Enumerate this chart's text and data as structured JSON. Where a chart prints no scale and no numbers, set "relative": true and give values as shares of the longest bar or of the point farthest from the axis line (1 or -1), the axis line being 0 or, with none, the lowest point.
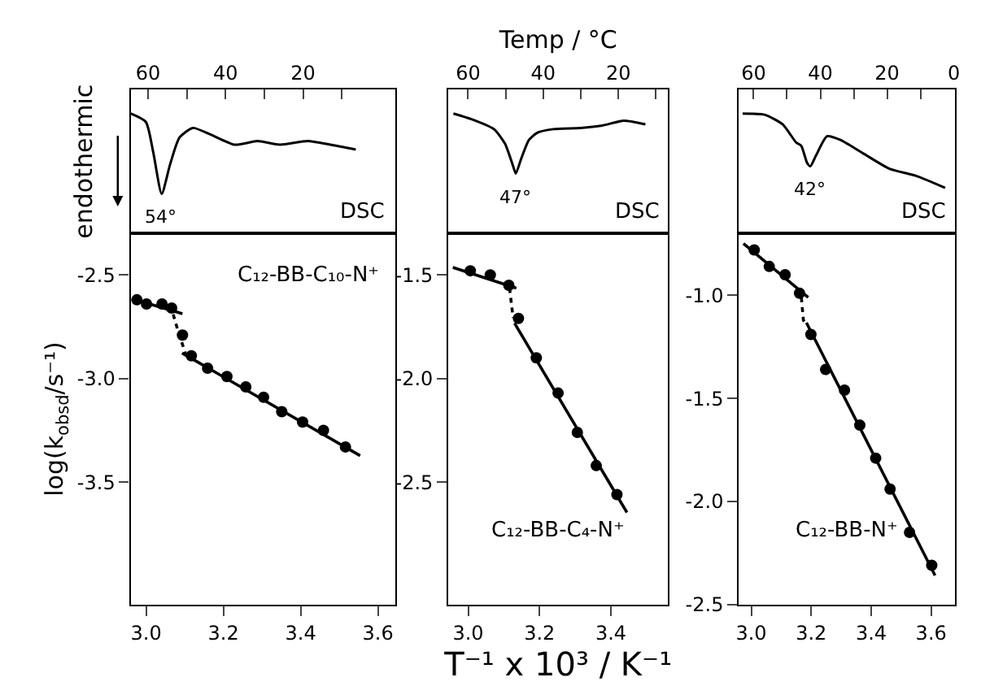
{
  "chart_data": [
    {
      "type": "line",
      "relative": true,
      "ylabel": "endothermic",
      "tick_labels": "x",
      "xlim": [
        64.5,
        -3.8
      ],
      "xticks": [
        60,
        {
          "value": 50,
          "label": null
        },
        40,
        {
          "value": 30,
          "label": null
        },
        20,
        {
          "value": 10,
          "label": null
        }
      ],
      "series": [
        {
          "color": "#000000",
          "x": [
            64.5,
            60.6,
            58.7,
            56.5,
            54.3,
            51.9,
            48.5,
            44.2,
            37.6,
            31.8,
            26.0,
            18.8,
            13.0,
            6.4
          ],
          "values": [
            1.0,
            0.93,
            0.68,
            0.33,
            0.58,
            0.8,
            0.88,
            0.83,
            0.74,
            0.77,
            0.74,
            0.77,
            0.74,
            0.7
          ]
        }
      ],
      "annotations": [
        {
          "text": "54°",
          "x": 56.5,
          "y": 0.33
        },
        "DSC"
      ]
    },
    {
      "type": "line",
      "relative": true,
      "xlabel": "Temp / °C",
      "tick_labels": "x",
      "xlim": [
        65.2,
        6.8
      ],
      "xticks": [
        60,
        {
          "value": 50,
          "label": null
        },
        40,
        {
          "value": 30,
          "label": null
        },
        20,
        {
          "value": 10,
          "label": null
        }
      ],
      "series": [
        {
          "color": "#000000",
          "x": [
            63.9,
            58.8,
            53.1,
            50.2,
            48.1,
            47.3,
            45.9,
            43.8,
            41.6,
            37.3,
            30.1,
            24.3,
            18.6,
            12.8
          ],
          "values": [
            1.0,
            0.95,
            0.87,
            0.75,
            0.57,
            0.5,
            0.62,
            0.78,
            0.84,
            0.87,
            0.88,
            0.9,
            0.94,
            0.91
          ]
        }
      ],
      "annotations": [
        {
          "text": "47°",
          "x": 47.3,
          "y": 0.5
        },
        "DSC"
      ]
    },
    {
      "type": "line",
      "relative": true,
      "tick_labels": "x",
      "xlim": [
        64.4,
        -0.4
      ],
      "xticks": [
        60,
        {
          "value": 50,
          "label": null
        },
        40,
        {
          "value": 30,
          "label": null
        },
        20,
        {
          "value": 10,
          "label": null
        },
        0
      ],
      "series": [
        {
          "color": "#000000",
          "x": [
            63.3,
            56.7,
            51.3,
            47.3,
            45.7,
            44.0,
            43.0,
            41.3,
            38.0,
            34.0,
            27.3,
            19.3,
            11.3,
            2.6
          ],
          "values": [
            1.0,
            0.99,
            0.91,
            0.76,
            0.73,
            0.59,
            0.56,
            0.65,
            0.81,
            0.78,
            0.67,
            0.54,
            0.48,
            0.38
          ]
        }
      ],
      "annotations": [
        {
          "text": "42°",
          "x": 43.0,
          "y": 0.56
        },
        "DSC"
      ]
    },
    {
      "type": "scatter",
      "ylabel": "log(k$_{obsd}$/s⁻¹)",
      "xlim": [
        2.96,
        3.645
      ],
      "xticks": [
        {
          "value": 3.0,
          "label": "3.0"
        },
        3.2,
        3.4,
        3.6
      ],
      "ylim": [
        -4.09,
        -2.3
      ],
      "yticks": [
        -2.5,
        {
          "value": -3.0,
          "label": "-3.0"
        },
        -3.5
      ],
      "series": [
        {
          "type": "scatter",
          "marker": "circle",
          "color": "#000000",
          "x": [
            2.976,
            3.001,
            3.041,
            3.066,
            3.094,
            3.117,
            3.159,
            3.209,
            3.258,
            3.304,
            3.351,
            3.405,
            3.459,
            3.516
          ],
          "values": [
            -2.62,
            -2.64,
            -2.64,
            -2.66,
            -2.79,
            -2.89,
            -2.95,
            -2.99,
            -3.04,
            -3.09,
            -3.16,
            -3.21,
            -3.25,
            -3.33
          ]
        },
        {
          "type": "line",
          "color": "#000000",
          "line_style": "solid",
          "x": [
            2.963,
            3.094
          ],
          "values": [
            -2.615,
            -2.687
          ]
        },
        {
          "type": "line",
          "color": "#000000",
          "line_style": "dotted",
          "x": [
            3.07,
            3.084,
            3.103
          ],
          "values": [
            -2.69,
            -2.78,
            -2.885
          ]
        },
        {
          "type": "line",
          "color": "#000000",
          "line_style": "solid",
          "x": [
            3.093,
            3.554
          ],
          "values": [
            -2.877,
            -3.372
          ]
        }
      ],
      "annotations": [
        "C₁₂-BB-C₁₀-N⁺"
      ]
    },
    {
      "type": "scatter",
      "xlabel": "T⁻¹ x 10³ / K⁻¹",
      "xlim": [
        2.945,
        3.56
      ],
      "xticks": [
        {
          "value": 3.0,
          "label": "3.0"
        },
        3.2,
        3.4
      ],
      "ylim": [
        -3.09,
        -1.3
      ],
      "yticks": [
        -1.5,
        {
          "value": -2.0,
          "label": "-2.0"
        },
        -2.5
      ],
      "series": [
        {
          "type": "scatter",
          "marker": "circle",
          "color": "#000000",
          "x": [
            3.006,
            3.062,
            3.114,
            3.141,
            3.191,
            3.252,
            3.306,
            3.359,
            3.417
          ],
          "values": [
            -1.48,
            -1.5,
            -1.55,
            -1.71,
            -1.9,
            -2.07,
            -2.26,
            -2.42,
            -2.56
          ]
        },
        {
          "type": "line",
          "color": "#000000",
          "line_style": "solid",
          "x": [
            2.957,
            3.135
          ],
          "values": [
            -1.464,
            -1.564
          ]
        },
        {
          "type": "line",
          "color": "#000000",
          "line_style": "dotted",
          "x": [
            3.116,
            3.126
          ],
          "values": [
            -1.564,
            -1.707
          ]
        },
        {
          "type": "line",
          "color": "#000000",
          "line_style": "solid",
          "x": [
            3.13,
            3.445
          ],
          "values": [
            -1.733,
            -2.646
          ]
        }
      ],
      "annotations": [
        "C₁₂-BB-C₄-N⁺"
      ]
    },
    {
      "type": "scatter",
      "xlim": [
        2.959,
        3.68
      ],
      "xticks": [
        {
          "value": 3.0,
          "label": "3.0"
        },
        3.2,
        3.4,
        3.6
      ],
      "ylim": [
        -2.5,
        -0.7
      ],
      "yticks": [
        {
          "value": -1.0,
          "label": "-1.0"
        },
        -1.5,
        {
          "value": -2.0,
          "label": "-2.0"
        },
        -2.5
      ],
      "series": [
        {
          "type": "scatter",
          "marker": "circle",
          "color": "#000000",
          "x": [
            3.01,
            3.06,
            3.113,
            3.161,
            3.199,
            3.248,
            3.311,
            3.362,
            3.415,
            3.463,
            3.528,
            3.602
          ],
          "values": [
            -0.78,
            -0.86,
            -0.9,
            -0.99,
            -1.19,
            -1.36,
            -1.46,
            -1.63,
            -1.79,
            -1.94,
            -2.15,
            -2.31
          ]
        },
        {
          "type": "line",
          "color": "#000000",
          "line_style": "solid",
          "x": [
            2.974,
            3.19
          ],
          "values": [
            -0.749,
            -1.01
          ]
        },
        {
          "type": "line",
          "color": "#000000",
          "line_style": "dotted",
          "x": [
            3.167,
            3.174,
            3.186
          ],
          "values": [
            -1.01,
            -1.121,
            -1.146
          ]
        },
        {
          "type": "line",
          "color": "#000000",
          "line_style": "solid",
          "x": [
            3.184,
            3.613
          ],
          "values": [
            -1.133,
            -2.359
          ]
        }
      ],
      "annotations": [
        "C₁₂-BB-N⁺"
      ]
    }
  ]
}
